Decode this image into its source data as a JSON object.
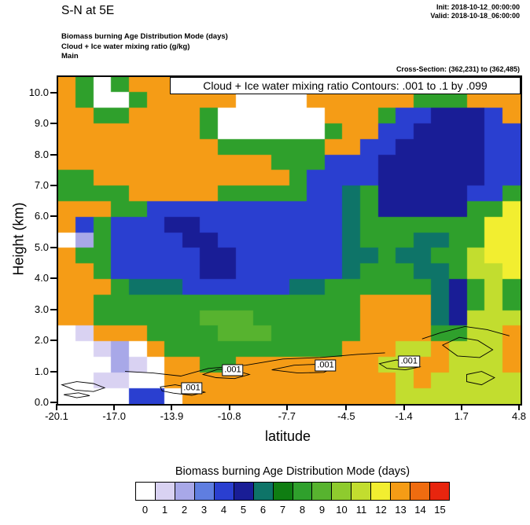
{
  "header": {
    "title": "S-N at 5E",
    "init": "Init: 2018-10-12_00:00:00",
    "valid": "Valid: 2018-10-18_06:00:00",
    "field_line1": "Biomass burning Age Distribution Mode   (days)",
    "field_line2": "Cloud + Ice water mixing ratio   (g/kg)",
    "field_line3": "Main",
    "cross_section": "Cross-Section: (362,231) to (362,485)"
  },
  "chart_data": {
    "type": "heatmap",
    "title": "Cloud + Ice water mixing ratio Contours: .001 to .1 by .099",
    "xlabel": "latitude",
    "ylabel": "Height (km)",
    "xlim": [
      -20.1,
      4.8
    ],
    "ylim": [
      0,
      10.55
    ],
    "x_ticks": [
      -20.1,
      -17.0,
      -13.9,
      -10.8,
      -7.7,
      -4.5,
      -1.4,
      1.7,
      4.8
    ],
    "x_tick_labels": [
      "-20.1",
      "-17.0",
      "-13.9",
      "-10.8",
      "-7.7",
      "-4.5",
      "-1.4",
      "1.7",
      "4.8"
    ],
    "y_ticks": [
      0,
      1,
      2,
      3,
      4,
      5,
      6,
      7,
      8,
      9,
      10
    ],
    "y_tick_labels": [
      "0.0",
      "1.0",
      "2.0",
      "3.0",
      "4.0",
      "5.0",
      "6.0",
      "7.0",
      "8.0",
      "9.0",
      "10.0"
    ],
    "grid": {
      "cols": 26,
      "rows": 21,
      "lat_range": [
        -20.1,
        4.8
      ],
      "height_range": [
        0,
        10.5
      ],
      "comment": "age (days) values, rows top (10.5 km) to bottom (0 km)",
      "values": [
        [
          13,
          8,
          0,
          8,
          13,
          13,
          13,
          13,
          13,
          13,
          13,
          13,
          13,
          13,
          13,
          13,
          13,
          13,
          13,
          13,
          13,
          13,
          13,
          13,
          13,
          13
        ],
        [
          13,
          8,
          0,
          0,
          8,
          13,
          13,
          13,
          13,
          13,
          0,
          0,
          0,
          0,
          13,
          13,
          13,
          13,
          13,
          13,
          8,
          8,
          8,
          13,
          13,
          13
        ],
        [
          13,
          13,
          8,
          8,
          13,
          13,
          13,
          13,
          8,
          0,
          0,
          0,
          0,
          0,
          0,
          13,
          13,
          13,
          8,
          4,
          4,
          5,
          5,
          5,
          4,
          13
        ],
        [
          13,
          13,
          13,
          13,
          13,
          13,
          13,
          13,
          8,
          0,
          0,
          0,
          0,
          0,
          0,
          8,
          13,
          13,
          4,
          4,
          5,
          5,
          5,
          5,
          4,
          4
        ],
        [
          13,
          13,
          13,
          13,
          13,
          13,
          13,
          13,
          13,
          8,
          8,
          8,
          8,
          8,
          8,
          13,
          13,
          4,
          4,
          5,
          5,
          5,
          5,
          5,
          4,
          4
        ],
        [
          13,
          13,
          13,
          13,
          13,
          13,
          13,
          13,
          13,
          13,
          13,
          13,
          8,
          8,
          8,
          4,
          4,
          4,
          5,
          5,
          5,
          5,
          5,
          5,
          4,
          4
        ],
        [
          8,
          8,
          13,
          13,
          13,
          13,
          13,
          13,
          13,
          13,
          13,
          13,
          13,
          8,
          4,
          4,
          4,
          4,
          5,
          5,
          5,
          5,
          5,
          5,
          4,
          4
        ],
        [
          8,
          8,
          8,
          8,
          13,
          13,
          13,
          13,
          13,
          8,
          8,
          8,
          8,
          8,
          4,
          4,
          6,
          8,
          5,
          5,
          5,
          5,
          5,
          4,
          4,
          8
        ],
        [
          13,
          13,
          13,
          8,
          8,
          4,
          4,
          4,
          4,
          4,
          4,
          4,
          4,
          4,
          4,
          4,
          6,
          8,
          5,
          5,
          5,
          5,
          5,
          8,
          8,
          12
        ],
        [
          13,
          4,
          8,
          4,
          4,
          4,
          5,
          5,
          4,
          4,
          4,
          4,
          4,
          4,
          4,
          4,
          6,
          8,
          8,
          8,
          8,
          8,
          8,
          8,
          12,
          12
        ],
        [
          0,
          2,
          8,
          4,
          4,
          4,
          4,
          5,
          5,
          4,
          4,
          4,
          4,
          4,
          4,
          4,
          6,
          8,
          8,
          8,
          6,
          6,
          8,
          8,
          12,
          12
        ],
        [
          13,
          8,
          8,
          4,
          4,
          4,
          4,
          4,
          5,
          5,
          4,
          4,
          4,
          4,
          4,
          4,
          6,
          6,
          8,
          6,
          6,
          8,
          8,
          11,
          12,
          12
        ],
        [
          13,
          13,
          8,
          4,
          4,
          4,
          4,
          4,
          5,
          5,
          4,
          4,
          4,
          4,
          4,
          4,
          6,
          8,
          8,
          8,
          6,
          6,
          8,
          11,
          11,
          12
        ],
        [
          13,
          13,
          13,
          8,
          6,
          6,
          6,
          4,
          4,
          4,
          4,
          4,
          4,
          6,
          6,
          8,
          8,
          8,
          8,
          8,
          8,
          6,
          5,
          8,
          11,
          8
        ],
        [
          13,
          13,
          8,
          8,
          8,
          8,
          8,
          8,
          8,
          8,
          8,
          8,
          8,
          8,
          8,
          8,
          8,
          13,
          13,
          13,
          13,
          6,
          5,
          8,
          11,
          8
        ],
        [
          13,
          13,
          8,
          8,
          8,
          8,
          8,
          8,
          9,
          9,
          9,
          8,
          8,
          8,
          8,
          8,
          8,
          13,
          13,
          13,
          13,
          6,
          5,
          11,
          11,
          11
        ],
        [
          0,
          1,
          13,
          13,
          13,
          8,
          8,
          8,
          8,
          9,
          9,
          9,
          8,
          8,
          8,
          8,
          8,
          13,
          13,
          13,
          13,
          8,
          8,
          11,
          11,
          13
        ],
        [
          0,
          0,
          1,
          2,
          0,
          13,
          8,
          8,
          8,
          8,
          8,
          8,
          8,
          8,
          8,
          8,
          13,
          13,
          13,
          11,
          11,
          13,
          11,
          11,
          11,
          13
        ],
        [
          0,
          0,
          0,
          2,
          1,
          0,
          13,
          13,
          8,
          8,
          13,
          13,
          13,
          13,
          13,
          13,
          13,
          13,
          11,
          11,
          13,
          13,
          11,
          11,
          11,
          13
        ],
        [
          0,
          0,
          1,
          1,
          0,
          0,
          13,
          13,
          13,
          13,
          13,
          13,
          13,
          13,
          13,
          13,
          13,
          13,
          13,
          11,
          13,
          11,
          11,
          11,
          11,
          11
        ],
        [
          0,
          0,
          0,
          0,
          4,
          4,
          0,
          13,
          13,
          13,
          13,
          13,
          13,
          13,
          13,
          13,
          13,
          13,
          13,
          11,
          11,
          11,
          11,
          11,
          11,
          11
        ]
      ]
    },
    "contour_labels": [
      {
        "lat": -12.9,
        "height": 0.5,
        "text": ".001"
      },
      {
        "lat": -10.7,
        "height": 1.09,
        "text": ".001"
      },
      {
        "lat": -5.7,
        "height": 1.24,
        "text": ".001"
      },
      {
        "lat": -1.2,
        "height": 1.37,
        "text": ".001"
      }
    ],
    "contour_paths": [
      {
        "closed": true,
        "points": [
          [
            -19.9,
            0.62
          ],
          [
            -19.1,
            0.72
          ],
          [
            -18.2,
            0.66
          ],
          [
            -17.6,
            0.52
          ],
          [
            -18.2,
            0.4
          ],
          [
            -19.2,
            0.45
          ]
        ]
      },
      {
        "closed": true,
        "points": [
          [
            -19.8,
            0.3
          ],
          [
            -19.0,
            0.36
          ],
          [
            -18.4,
            0.27
          ],
          [
            -19.1,
            0.2
          ]
        ]
      },
      {
        "closed": true,
        "points": [
          [
            -14.6,
            0.55
          ],
          [
            -13.8,
            0.62
          ],
          [
            -12.9,
            0.52
          ],
          [
            -12.2,
            0.38
          ],
          [
            -12.9,
            0.28
          ],
          [
            -13.9,
            0.35
          ],
          [
            -14.5,
            0.42
          ]
        ]
      },
      {
        "closed": true,
        "points": [
          [
            -12.3,
            0.95
          ],
          [
            -11.5,
            1.12
          ],
          [
            -10.7,
            1.1
          ],
          [
            -9.8,
            0.95
          ],
          [
            -10.6,
            0.82
          ],
          [
            -11.6,
            0.85
          ]
        ]
      },
      {
        "closed": true,
        "points": [
          [
            -8.6,
            1.1
          ],
          [
            -7.4,
            1.25
          ],
          [
            -6.2,
            1.28
          ],
          [
            -5.2,
            1.18
          ],
          [
            -5.8,
            1.02
          ],
          [
            -7.2,
            1.0
          ]
        ]
      },
      {
        "closed": true,
        "points": [
          [
            -2.8,
            1.3
          ],
          [
            -1.9,
            1.42
          ],
          [
            -1.0,
            1.35
          ],
          [
            -0.6,
            1.2
          ],
          [
            -1.4,
            1.1
          ],
          [
            -2.4,
            1.15
          ]
        ]
      },
      {
        "closed": true,
        "points": [
          [
            0.6,
            1.9
          ],
          [
            1.5,
            2.15
          ],
          [
            2.5,
            2.05
          ],
          [
            3.3,
            1.75
          ],
          [
            2.6,
            1.5
          ],
          [
            1.4,
            1.55
          ]
        ]
      },
      {
        "closed": true,
        "points": [
          [
            1.9,
            0.95
          ],
          [
            2.7,
            1.05
          ],
          [
            3.4,
            0.85
          ],
          [
            2.7,
            0.62
          ],
          [
            1.9,
            0.72
          ]
        ]
      },
      {
        "closed": false,
        "points": [
          [
            -16.5,
            1.05
          ],
          [
            -15.0,
            1.0
          ],
          [
            -13.5,
            0.9
          ],
          [
            -12.0,
            1.15
          ],
          [
            -10.0,
            1.25
          ],
          [
            -8.0,
            1.45
          ],
          [
            -6.0,
            1.5
          ],
          [
            -4.0,
            1.6
          ],
          [
            -2.5,
            1.65
          ]
        ]
      },
      {
        "closed": false,
        "points": [
          [
            -0.5,
            2.1
          ],
          [
            0.5,
            2.3
          ],
          [
            1.8,
            2.5
          ],
          [
            3.0,
            2.4
          ],
          [
            4.2,
            2.2
          ]
        ]
      }
    ]
  },
  "colorbar": {
    "title": "Biomass burning Age Distribution Mode  (days)",
    "labels": [
      "0",
      "1",
      "2",
      "3",
      "4",
      "5",
      "6",
      "7",
      "8",
      "9",
      "10",
      "11",
      "12",
      "13",
      "14",
      "15"
    ],
    "colors": [
      "#ffffff",
      "#d9d2f2",
      "#a8a8e8",
      "#5f7ee0",
      "#2a3fd0",
      "#191d96",
      "#0e7468",
      "#0f7d12",
      "#2fa02c",
      "#57b32f",
      "#8ecb2e",
      "#c2dd2f",
      "#f2ee30",
      "#f59c16",
      "#ef6c10",
      "#e8250e"
    ]
  }
}
